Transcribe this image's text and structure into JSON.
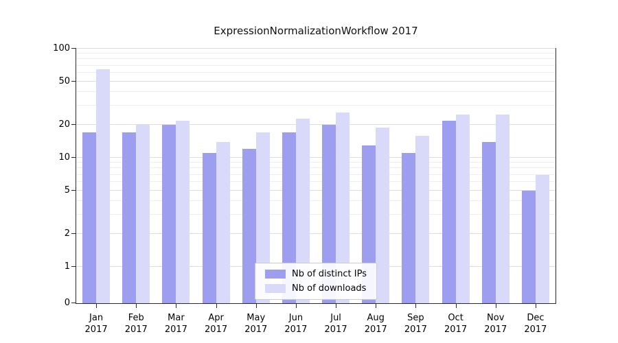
{
  "chart_data": {
    "type": "bar",
    "title": "ExpressionNormalizationWorkflow 2017",
    "categories": [
      "Jan",
      "Feb",
      "Mar",
      "Apr",
      "May",
      "Jun",
      "Jul",
      "Aug",
      "Sep",
      "Oct",
      "Nov",
      "Dec"
    ],
    "x_year": "2017",
    "series": [
      {
        "name": "Nb of distinct IPs",
        "color": "#9e9ef0",
        "values": [
          17,
          17,
          20,
          11,
          12,
          17,
          20,
          13,
          11,
          22,
          14,
          5
        ]
      },
      {
        "name": "Nb of downloads",
        "color": "#d9d9fa",
        "values": [
          65,
          20,
          22,
          14,
          17,
          23,
          26,
          19,
          16,
          25,
          25,
          7
        ]
      }
    ],
    "yscale": "symlog",
    "ylim": [
      0,
      100
    ],
    "yticks": [
      0,
      1,
      2,
      5,
      10,
      20,
      50,
      100
    ],
    "minor_yticks": [
      3,
      4,
      6,
      7,
      8,
      9,
      30,
      40,
      60,
      70,
      80,
      90
    ],
    "grid": "horizontal",
    "legend_position": "lower center"
  }
}
